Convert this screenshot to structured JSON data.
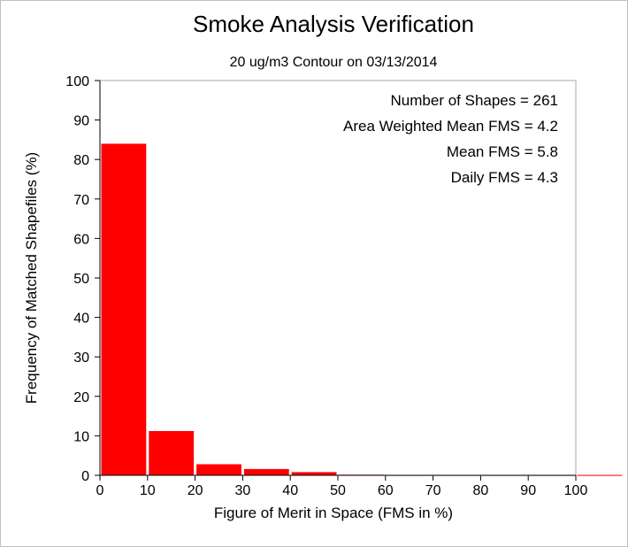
{
  "chart_data": {
    "type": "bar",
    "title": "Smoke Analysis Verification",
    "subtitle": "20 ug/m3 Contour on 03/13/2014",
    "xlabel": "Figure of Merit in Space (FMS in %)",
    "ylabel": "Frequency of Matched Shapefiles (%)",
    "xlim": [
      0,
      110
    ],
    "ylim": [
      0,
      100
    ],
    "xticks": [
      "0",
      "10",
      "20",
      "30",
      "40",
      "50",
      "60",
      "70",
      "80",
      "90",
      "100"
    ],
    "yticks": [
      "0",
      "10",
      "20",
      "30",
      "40",
      "50",
      "60",
      "70",
      "80",
      "90",
      "100"
    ],
    "bins": [
      {
        "x0": 0,
        "x1": 10,
        "value": 84
      },
      {
        "x0": 10,
        "x1": 20,
        "value": 11.2
      },
      {
        "x0": 20,
        "x1": 30,
        "value": 2.8
      },
      {
        "x0": 30,
        "x1": 40,
        "value": 1.6
      },
      {
        "x0": 40,
        "x1": 50,
        "value": 0.8
      },
      {
        "x0": 50,
        "x1": 60,
        "value": 0.15
      },
      {
        "x0": 60,
        "x1": 70,
        "value": 0.1
      },
      {
        "x0": 70,
        "x1": 80,
        "value": 0.1
      },
      {
        "x0": 80,
        "x1": 90,
        "value": 0.1
      },
      {
        "x0": 90,
        "x1": 100,
        "value": 0.1
      },
      {
        "x0": 100,
        "x1": 110,
        "value": 0.1
      }
    ],
    "bar_color": "#ff0000",
    "grid": false,
    "annotations": [
      "Number of Shapes = 261",
      "Area Weighted Mean FMS = 4.2",
      "Mean FMS = 5.8",
      "Daily FMS = 4.3"
    ]
  }
}
